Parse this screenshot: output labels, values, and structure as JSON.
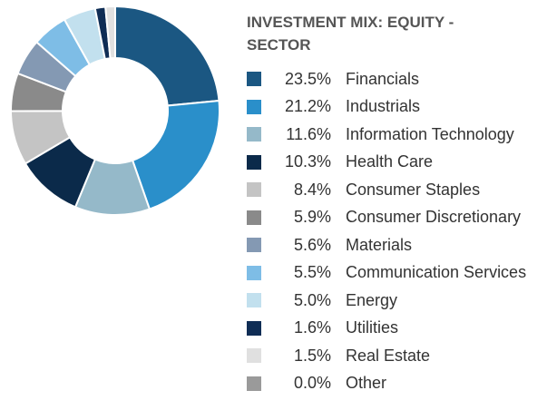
{
  "chart_data": {
    "type": "pie",
    "donut": true,
    "title": "INVESTMENT MIX: EQUITY - SECTOR",
    "categories": [
      "Financials",
      "Industrials",
      "Information Technology",
      "Health Care",
      "Consumer Staples",
      "Consumer Discretionary",
      "Materials",
      "Communication Services",
      "Energy",
      "Utilities",
      "Real Estate",
      "Other"
    ],
    "values": [
      23.5,
      21.2,
      11.6,
      10.3,
      8.4,
      5.9,
      5.6,
      5.5,
      5.0,
      1.6,
      1.5,
      0.0
    ],
    "value_labels": [
      "23.5%",
      "21.2%",
      "11.6%",
      "10.3%",
      "8.4%",
      "5.9%",
      "5.6%",
      "5.5%",
      "5.0%",
      "1.6%",
      "1.5%",
      "0.0%"
    ],
    "colors": [
      "#1b5782",
      "#2a8fca",
      "#95b9c9",
      "#0b2a4a",
      "#c4c4c4",
      "#8a8a8a",
      "#8499b3",
      "#7ebde6",
      "#c2e0ee",
      "#0f2d55",
      "#e0e0e0",
      "#9a9a9a"
    ]
  }
}
